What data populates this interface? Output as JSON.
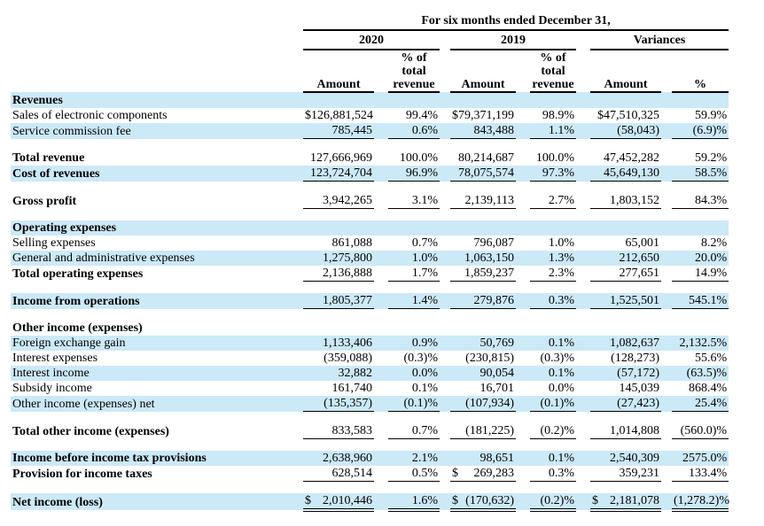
{
  "header": {
    "period_title": "For six months ended December 31,",
    "groups": [
      {
        "label": "2020",
        "sub_amount": "Amount",
        "sub_pct": "% of\ntotal\nrevenue"
      },
      {
        "label": "2019",
        "sub_amount": "Amount",
        "sub_pct": "% of\ntotal\nrevenue"
      },
      {
        "label": "Variances",
        "sub_amount": "Amount",
        "sub_pct": "%"
      }
    ]
  },
  "colors": {
    "row_highlight": "#cce9f8",
    "text": "#000000",
    "background": "#ffffff"
  },
  "table": {
    "rows": [
      {
        "label": "Revenues",
        "bold": true,
        "hl": true,
        "cells": [
          "",
          "",
          "",
          "",
          "",
          ""
        ]
      },
      {
        "label": "Sales of electronic components",
        "cells": [
          "$126,881,524",
          "99.4%",
          "$79,371,199",
          "98.9%",
          "$47,510,325",
          "59.9%"
        ]
      },
      {
        "label": "Service commission fee",
        "hl": true,
        "ul": "s",
        "cells": [
          "785,445",
          "0.6%",
          "843,488",
          "1.1%",
          "(58,043)",
          "(6.9)%"
        ]
      },
      {
        "spacer": true
      },
      {
        "label": "Total revenue",
        "bold": true,
        "cells": [
          "127,666,969",
          "100.0%",
          "80,214,687",
          "100.0%",
          "47,452,282",
          "59.2%"
        ]
      },
      {
        "label": "Cost of revenues",
        "bold": true,
        "hl": true,
        "ul": "s",
        "cells": [
          "123,724,704",
          "96.9%",
          "78,075,574",
          "97.3%",
          "45,649,130",
          "58.5%"
        ]
      },
      {
        "spacer": true
      },
      {
        "label": "Gross profit",
        "bold": true,
        "ul": "s",
        "cells": [
          "3,942,265",
          "3.1%",
          "2,139,113",
          "2.7%",
          "1,803,152",
          "84.3%"
        ]
      },
      {
        "spacer": true
      },
      {
        "label": "Operating expenses",
        "bold": true,
        "hl": true,
        "cells": [
          "",
          "",
          "",
          "",
          "",
          ""
        ]
      },
      {
        "label": "Selling expenses",
        "cells": [
          "861,088",
          "0.7%",
          "796,087",
          "1.0%",
          "65,001",
          "8.2%"
        ]
      },
      {
        "label": "General and administrative expenses",
        "hl": true,
        "cells": [
          "1,275,800",
          "1.0%",
          "1,063,150",
          "1.3%",
          "212,650",
          "20.0%"
        ]
      },
      {
        "label": "Total operating expenses",
        "bold": true,
        "ul": "s",
        "cells": [
          "2,136,888",
          "1.7%",
          "1,859,237",
          "2.3%",
          "277,651",
          "14.9%"
        ]
      },
      {
        "spacer": true
      },
      {
        "label": "Income from operations",
        "bold": true,
        "hl": true,
        "ul": "s",
        "cells": [
          "1,805,377",
          "1.4%",
          "279,876",
          "0.3%",
          "1,525,501",
          "545.1%"
        ]
      },
      {
        "spacer": true
      },
      {
        "label": "Other income (expenses)",
        "bold": true,
        "cells": [
          "",
          "",
          "",
          "",
          "",
          ""
        ]
      },
      {
        "label": "Foreign exchange gain",
        "hl": true,
        "cells": [
          "1,133,406",
          "0.9%",
          "50,769",
          "0.1%",
          "1,082,637",
          "2,132.5%"
        ]
      },
      {
        "label": "Interest expenses",
        "cells": [
          "(359,088)",
          "(0.3)%",
          "(230,815)",
          "(0.3)%",
          "(128,273)",
          "55.6%"
        ]
      },
      {
        "label": "Interest income",
        "hl": true,
        "cells": [
          "32,882",
          "0.0%",
          "90,054",
          "0.1%",
          "(57,172)",
          "(63.5)%"
        ]
      },
      {
        "label": "Subsidy income",
        "cells": [
          "161,740",
          "0.1%",
          "16,701",
          "0.0%",
          "145,039",
          "868.4%"
        ]
      },
      {
        "label": "Other income (expenses) net",
        "hl": true,
        "ul": "s",
        "cells": [
          "(135,357)",
          "(0.1)%",
          "(107,934)",
          "(0.1)%",
          "(27,423)",
          "25.4%"
        ]
      },
      {
        "spacer": true
      },
      {
        "label": "Total other income (expenses)",
        "bold": true,
        "ul": "s",
        "cells": [
          "833,583",
          "0.7%",
          "(181,225)",
          "(0.2)%",
          "1,014,808",
          "(560.0)%"
        ]
      },
      {
        "spacer": true
      },
      {
        "label": "Income before income tax provisions",
        "bold": true,
        "hl": true,
        "cells": [
          "2,638,960",
          "2.1%",
          "98,651",
          "0.1%",
          "2,540,309",
          "2575.0%"
        ]
      },
      {
        "label": "Provision for income taxes",
        "bold": true,
        "ul": "s",
        "cells": [
          "628,514",
          "0.5%",
          {
            "d": "$",
            "v": "269,283"
          },
          "0.3%",
          "359,231",
          "133.4%"
        ]
      },
      {
        "spacer": true
      },
      {
        "label": "Net income (loss)",
        "bold": true,
        "hl": true,
        "ul": "d",
        "cells": [
          {
            "d": "$",
            "v": "2,010,446"
          },
          "1.6%",
          {
            "d": "$",
            "v": "(170,632)"
          },
          "(0.2)%",
          {
            "d": "$",
            "v": "2,181,078"
          },
          "(1,278.2)%"
        ]
      }
    ]
  }
}
